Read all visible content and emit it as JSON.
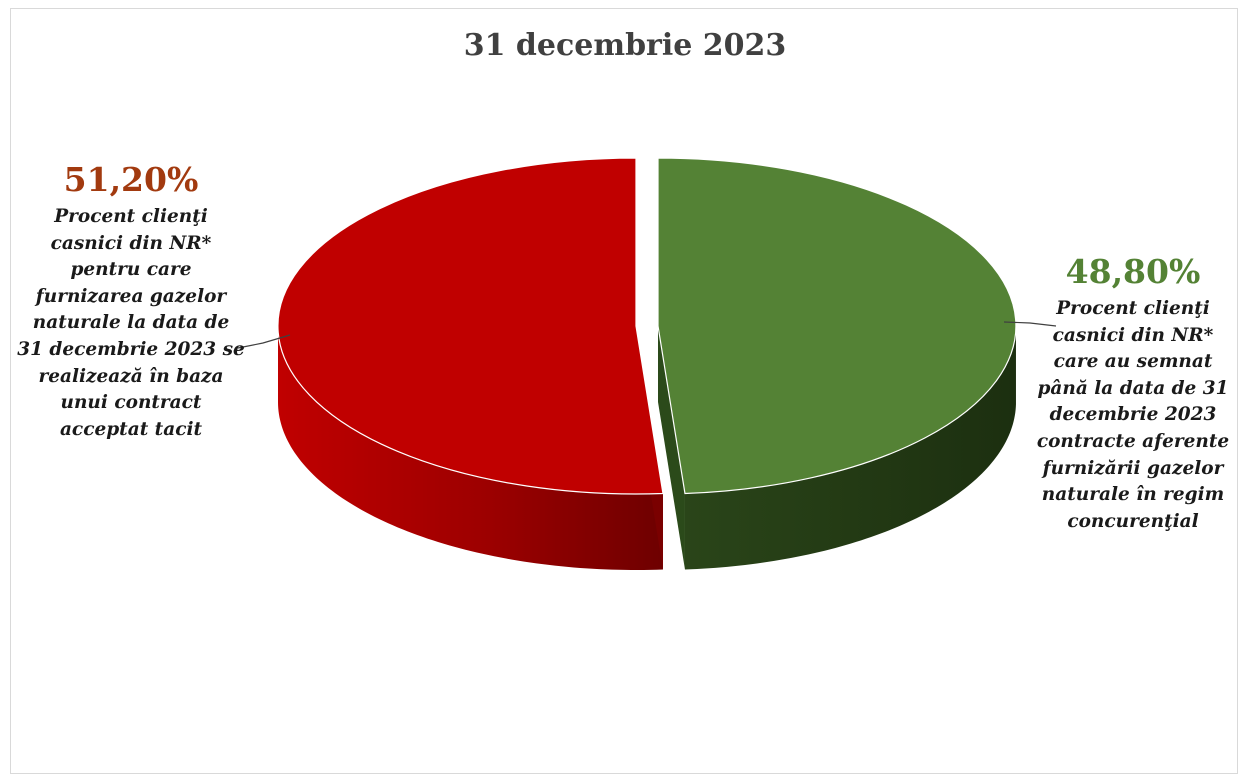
{
  "chart_data": {
    "type": "pie",
    "title": "31 decembrie 2023",
    "slices": [
      {
        "key": "tacit",
        "value": 51.2,
        "percent_label": "51,20%",
        "label_lines": [
          "Procent clienţi",
          "casnici din NR*",
          "pentru care",
          "furnizarea gazelor",
          "naturale la data de",
          "31 decembrie 2023 se",
          "realizează în baza",
          "unui contract",
          "acceptat tacit"
        ],
        "color": "#c00000",
        "text_color": "#a23a0f"
      },
      {
        "key": "concurential",
        "value": 48.8,
        "percent_label": "48,80%",
        "label_lines": [
          "Procent clienţi",
          "casnici din NR*",
          "care au semnat",
          "până la data de 31",
          "decembrie 2023",
          "contracte aferente",
          "furnizării gazelor",
          "naturale în regim",
          "concurenţial"
        ],
        "color": "#548235",
        "text_color": "#548235"
      }
    ],
    "style": "3d-exploded"
  }
}
